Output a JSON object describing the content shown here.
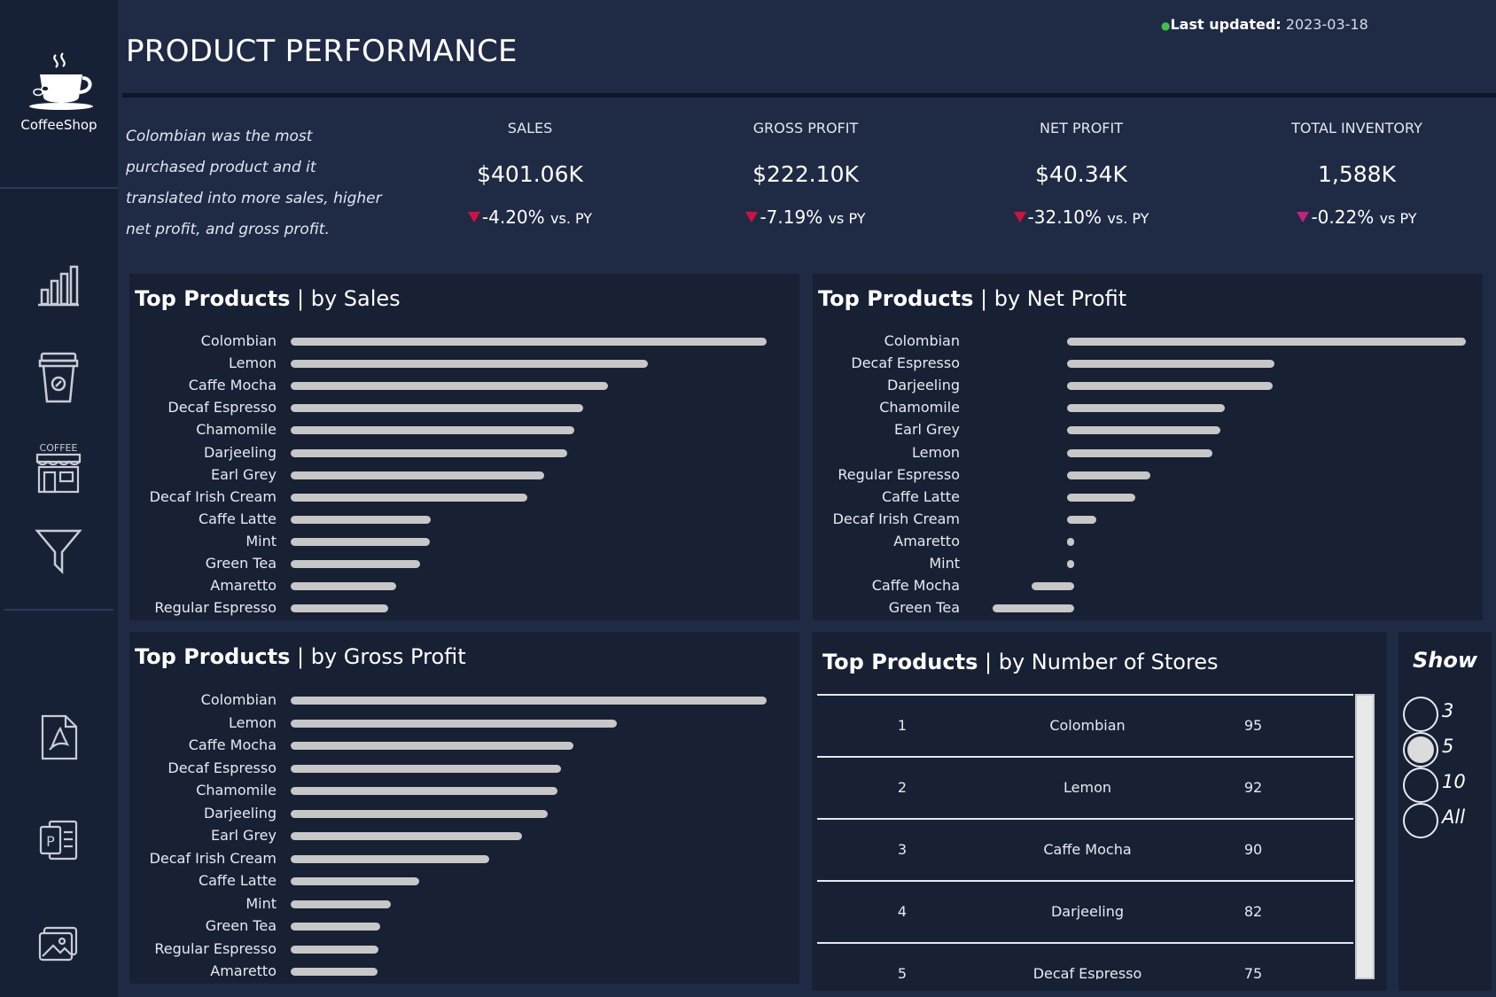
{
  "app": {
    "logo_text": "CoffeeShop"
  },
  "sidebar": {
    "icons": [
      "bar-chart-icon",
      "coffee-cup-icon",
      "coffee-shop-icon",
      "filter-icon",
      "pdf-icon",
      "powerpoint-icon",
      "image-icon"
    ]
  },
  "header": {
    "title": "PRODUCT PERFORMANCE",
    "updated_label": "Last updated:",
    "updated_value": "2023-03-18"
  },
  "summary": "Colombian was the most purchased product and it translated into more sales, higher net profit, and gross profit.",
  "kpis": [
    {
      "label": "SALES",
      "value": "$401.06K",
      "delta": "-4.20%",
      "suffix": "vs. PY"
    },
    {
      "label": "GROSS PROFIT",
      "value": "$222.10K",
      "delta": "-7.19%",
      "suffix": "vs PY"
    },
    {
      "label": "NET PROFIT",
      "value": "$40.34K",
      "delta": "-32.10%",
      "suffix": "vs. PY"
    },
    {
      "label": "TOTAL INVENTORY",
      "value": "1,588K",
      "delta": "-0.22%",
      "suffix": "vs PY"
    }
  ],
  "colors": {
    "background": "#1f2b45",
    "panel": "#182034",
    "bar": "#c7c7c7",
    "delta_red": "#d3103d",
    "delta_magenta": "#c5217f"
  },
  "panels": {
    "sales": {
      "title_bold": "Top Products",
      "title_rest": "| by Sales"
    },
    "net_profit": {
      "title_bold": "Top Products",
      "title_rest": "| by Net Profit"
    },
    "gross_profit": {
      "title_bold": "Top Products",
      "title_rest": "| by Gross Profit"
    },
    "stores": {
      "title_bold": "Top Products",
      "title_rest": "| by Number of Stores",
      "rows": [
        {
          "rank": "1",
          "product": "Colombian",
          "stores": "95"
        },
        {
          "rank": "2",
          "product": "Lemon",
          "stores": "92"
        },
        {
          "rank": "3",
          "product": "Caffe Mocha",
          "stores": "90"
        },
        {
          "rank": "4",
          "product": "Darjeeling",
          "stores": "82"
        },
        {
          "rank": "5",
          "product": "Decaf Espresso",
          "stores": "75"
        }
      ]
    },
    "show": {
      "title": "Show",
      "options": [
        "3",
        "5",
        "10",
        "All"
      ],
      "selected": "5"
    }
  },
  "chart_data": [
    {
      "type": "bar",
      "title": "Top Products | by Sales",
      "categories": [
        "Colombian",
        "Lemon",
        "Caffe Mocha",
        "Decaf Espresso",
        "Chamomile",
        "Darjeeling",
        "Earl Grey",
        "Decaf Irish Cream",
        "Caffe Latte",
        "Mint",
        "Green Tea",
        "Amaretto",
        "Regular Espresso"
      ],
      "values": [
        100,
        75,
        66.7,
        61.5,
        59.5,
        58.1,
        53.3,
        49.8,
        29.4,
        29.2,
        27.1,
        22.2,
        20.4
      ],
      "unit": "relative, max = 100"
    },
    {
      "type": "bar",
      "title": "Top Products | by Net Profit",
      "categories": [
        "Colombian",
        "Decaf Espresso",
        "Darjeeling",
        "Chamomile",
        "Earl Grey",
        "Lemon",
        "Regular Espresso",
        "Caffe Latte",
        "Decaf Irish Cream",
        "Amaretto",
        "Mint",
        "Caffe Mocha",
        "Green Tea"
      ],
      "values": [
        100,
        52,
        51.5,
        39.5,
        38.5,
        36.5,
        20.8,
        17.1,
        7.4,
        0.7,
        0.5,
        -10.6,
        -20.5
      ],
      "unit": "relative, max = 100"
    },
    {
      "type": "bar",
      "title": "Top Products | by Gross Profit",
      "categories": [
        "Colombian",
        "Lemon",
        "Caffe Mocha",
        "Decaf Espresso",
        "Chamomile",
        "Darjeeling",
        "Earl Grey",
        "Decaf Irish Cream",
        "Caffe Latte",
        "Mint",
        "Green Tea",
        "Regular Espresso",
        "Amaretto"
      ],
      "values": [
        100,
        68.6,
        59.4,
        56.8,
        56,
        54,
        48.6,
        41.7,
        27,
        21,
        18.8,
        18.4,
        18.2
      ],
      "unit": "relative, max = 100"
    }
  ]
}
